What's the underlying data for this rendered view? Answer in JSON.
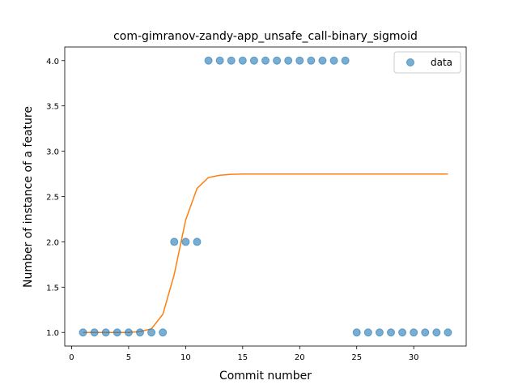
{
  "chart_data": {
    "type": "scatter",
    "title": "com-gimranov-zandy-app_unsafe_call-binary_sigmoid",
    "xlabel": "Commit number",
    "ylabel": "Number of instance of a feature",
    "xlim": [
      -0.6,
      34.6
    ],
    "ylim": [
      0.85,
      4.15
    ],
    "x_ticks": [
      0,
      5,
      10,
      15,
      20,
      25,
      30
    ],
    "x_tick_labels": [
      "0",
      "5",
      "10",
      "15",
      "20",
      "25",
      "30"
    ],
    "y_ticks": [
      1.0,
      1.5,
      2.0,
      2.5,
      3.0,
      3.5,
      4.0
    ],
    "y_tick_labels": [
      "1.0",
      "1.5",
      "2.0",
      "2.5",
      "3.0",
      "3.5",
      "4.0"
    ],
    "legend_position": "top-right",
    "series": [
      {
        "name": "data",
        "kind": "scatter",
        "color": "#1f77b4",
        "x": [
          1,
          2,
          3,
          4,
          5,
          6,
          7,
          8,
          9,
          10,
          11,
          12,
          13,
          14,
          15,
          16,
          17,
          18,
          19,
          20,
          21,
          22,
          23,
          24,
          25,
          26,
          27,
          28,
          29,
          30,
          31,
          32,
          33
        ],
        "y": [
          1,
          1,
          1,
          1,
          1,
          1,
          1,
          1,
          2,
          2,
          2,
          4,
          4,
          4,
          4,
          4,
          4,
          4,
          4,
          4,
          4,
          4,
          4,
          4,
          1,
          1,
          1,
          1,
          1,
          1,
          1,
          1,
          1
        ]
      },
      {
        "kind": "line",
        "color": "#ff7f0e",
        "x": [
          1,
          2,
          3,
          4,
          5,
          6,
          7,
          8,
          9,
          10,
          11,
          12,
          13,
          14,
          15,
          16,
          17,
          18,
          19,
          20,
          21,
          22,
          23,
          24,
          25,
          26,
          27,
          28,
          29,
          30,
          31,
          32,
          33
        ],
        "y": [
          1.0,
          1.0,
          1.0,
          1.0,
          1.0,
          1.01,
          1.04,
          1.2,
          1.64,
          2.24,
          2.59,
          2.71,
          2.735,
          2.745,
          2.748,
          2.748,
          2.748,
          2.748,
          2.748,
          2.748,
          2.748,
          2.748,
          2.748,
          2.748,
          2.748,
          2.748,
          2.748,
          2.748,
          2.748,
          2.748,
          2.748,
          2.748,
          2.748
        ]
      }
    ]
  }
}
